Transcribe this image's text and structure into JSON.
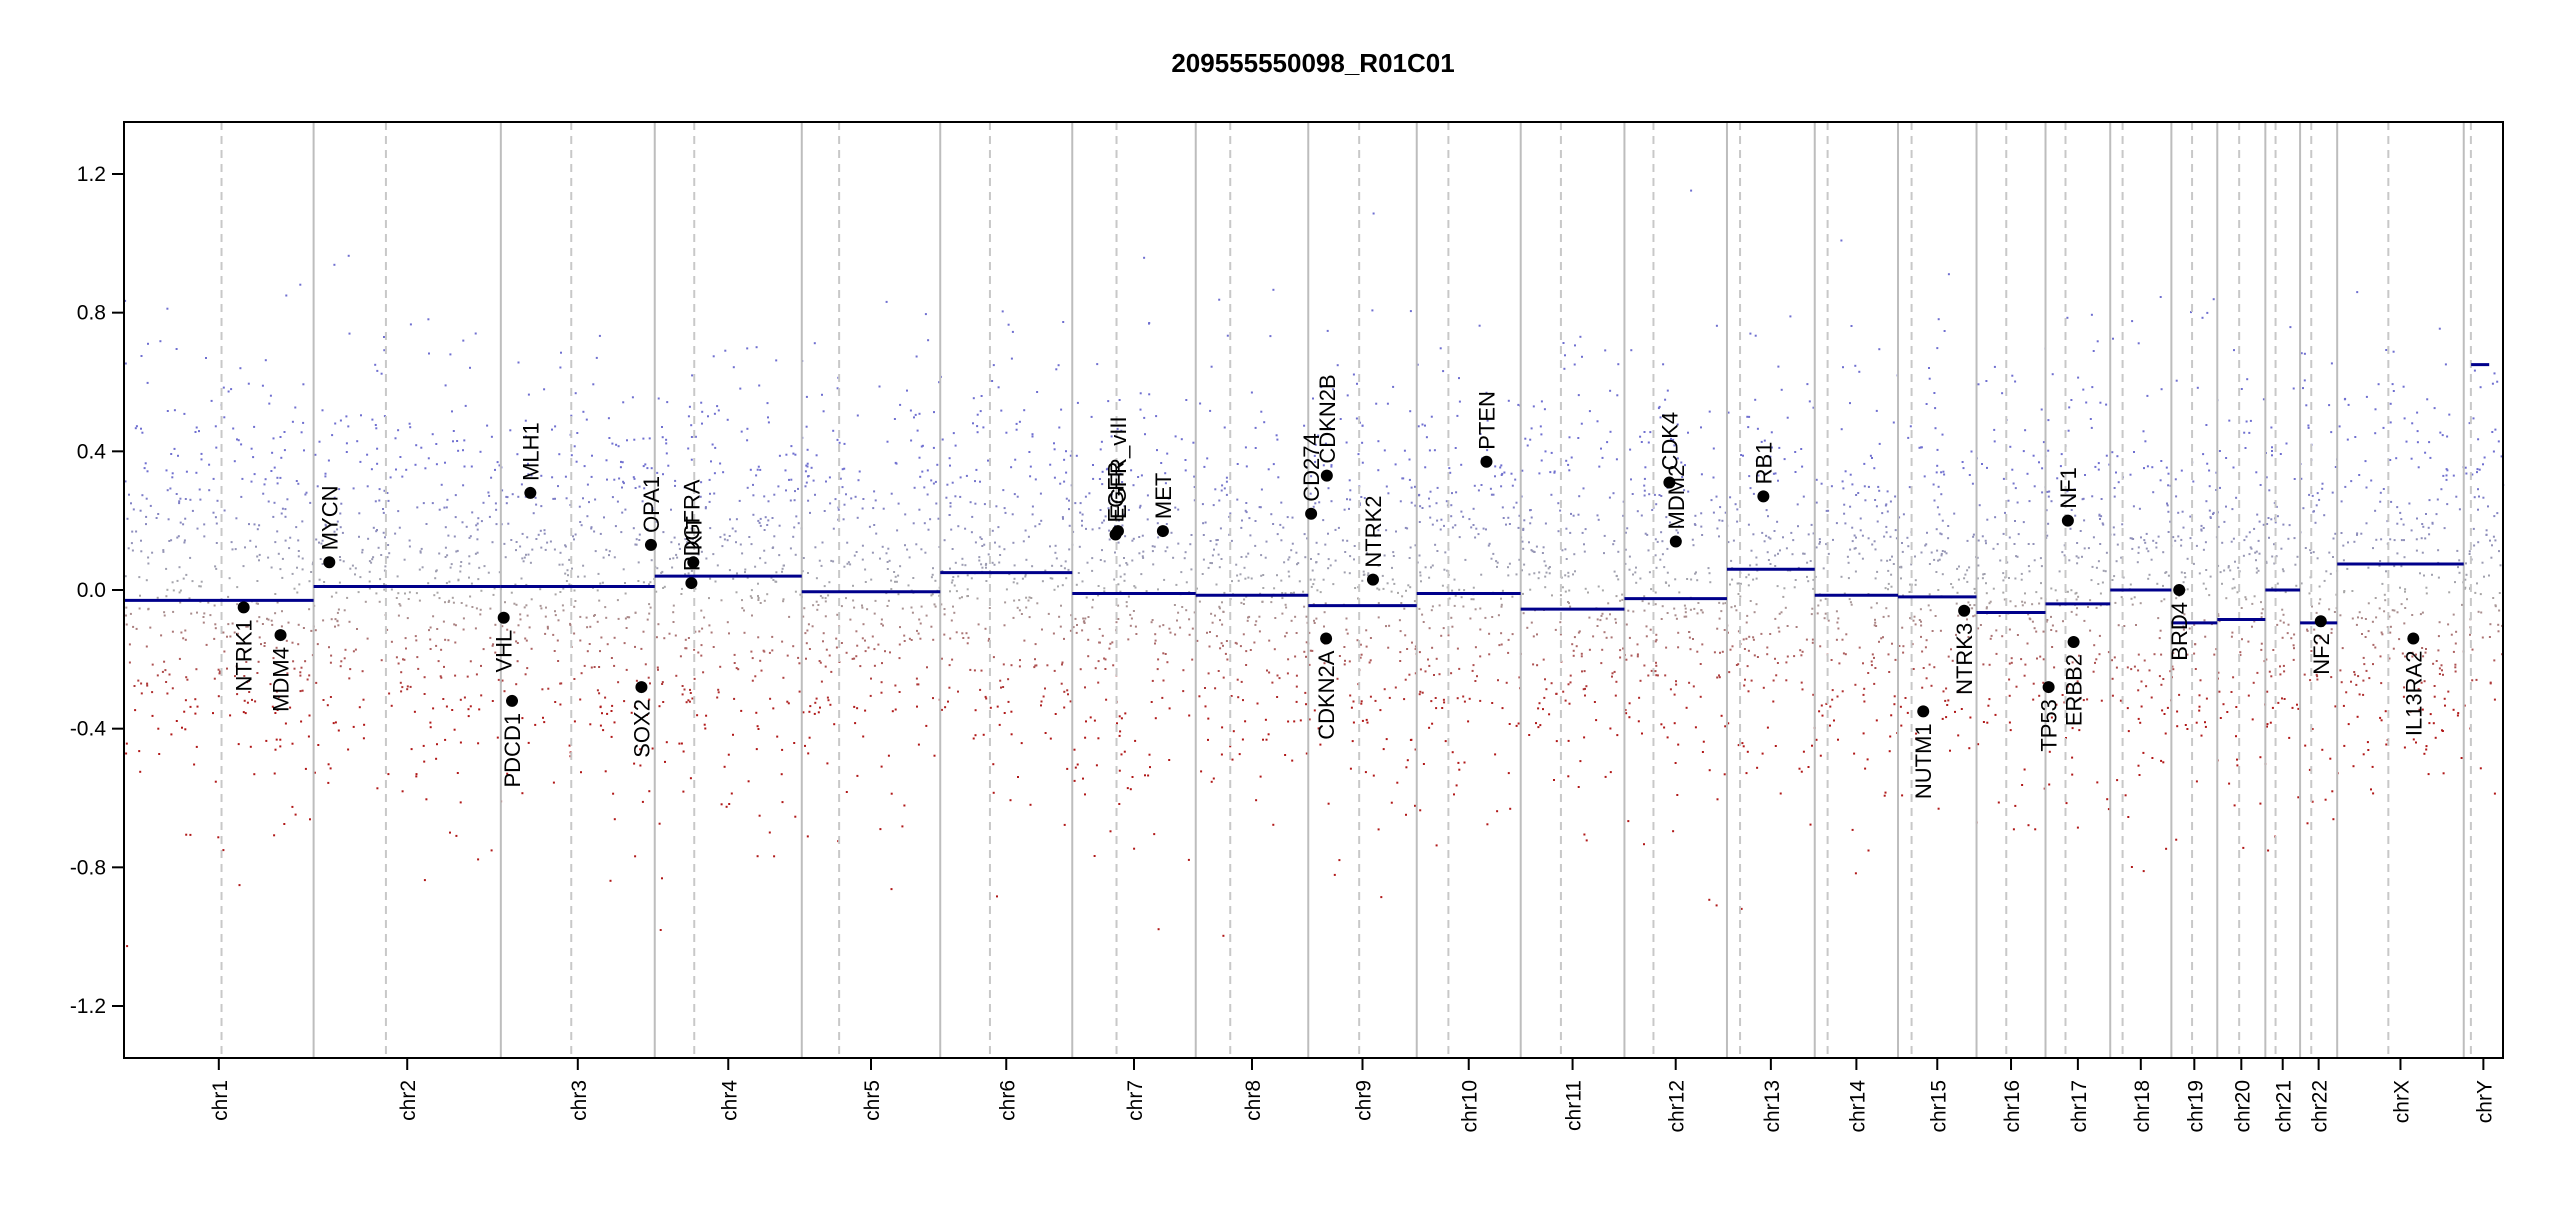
{
  "chart_data": {
    "type": "scatter",
    "title": "209555550098_R01C01",
    "xlabel": "",
    "ylabel": "",
    "ylim": [
      -1.35,
      1.35
    ],
    "y_ticks": [
      {
        "value": -1.2,
        "label": "-1.2"
      },
      {
        "value": -0.8,
        "label": "-0.8"
      },
      {
        "value": -0.4,
        "label": "-0.4"
      },
      {
        "value": 0.0,
        "label": "0.0"
      },
      {
        "value": 0.4,
        "label": "0.4"
      },
      {
        "value": 0.8,
        "label": "0.8"
      },
      {
        "value": 1.2,
        "label": "1.2"
      }
    ],
    "grid": false,
    "colors": {
      "gain_points": "#6f6fd0",
      "loss_points": "#b01818",
      "neutral_points": "#a8a8a8",
      "segment": "#00008b",
      "gene_marker": "#000000",
      "chrom_boundary": "#bdbdbd",
      "centromere": "#c8c8c8"
    },
    "chromosomes": [
      {
        "name": "chr1",
        "start": 0.0,
        "end": 0.0797,
        "centromere": 0.041,
        "segments": [
          {
            "start": 0.0,
            "end": 0.0797,
            "value": -0.03
          }
        ]
      },
      {
        "name": "chr2",
        "start": 0.0797,
        "end": 0.1584,
        "centromere": 0.1101,
        "segments": [
          {
            "start": 0.0797,
            "end": 0.1584,
            "value": 0.01
          }
        ]
      },
      {
        "name": "chr3",
        "start": 0.1584,
        "end": 0.2231,
        "centromere": 0.188,
        "segments": [
          {
            "start": 0.1584,
            "end": 0.2231,
            "value": 0.01
          }
        ]
      },
      {
        "name": "chr4",
        "start": 0.2231,
        "end": 0.2849,
        "centromere": 0.2397,
        "segments": [
          {
            "start": 0.2231,
            "end": 0.2849,
            "value": 0.04
          }
        ]
      },
      {
        "name": "chr5",
        "start": 0.2849,
        "end": 0.3431,
        "centromere": 0.3006,
        "segments": [
          {
            "start": 0.2849,
            "end": 0.3431,
            "value": -0.005
          }
        ]
      },
      {
        "name": "chr6",
        "start": 0.3431,
        "end": 0.3986,
        "centromere": 0.364,
        "segments": [
          {
            "start": 0.3431,
            "end": 0.3986,
            "value": 0.05
          }
        ]
      },
      {
        "name": "chr7",
        "start": 0.3986,
        "end": 0.4505,
        "centromere": 0.4172,
        "segments": [
          {
            "start": 0.3986,
            "end": 0.4505,
            "value": -0.01
          }
        ]
      },
      {
        "name": "chr8",
        "start": 0.4505,
        "end": 0.4978,
        "centromere": 0.465,
        "segments": [
          {
            "start": 0.4505,
            "end": 0.4978,
            "value": -0.015
          }
        ]
      },
      {
        "name": "chr9",
        "start": 0.4978,
        "end": 0.5434,
        "centromere": 0.5192,
        "segments": [
          {
            "start": 0.4978,
            "end": 0.5434,
            "value": -0.045
          }
        ]
      },
      {
        "name": "chr10",
        "start": 0.5434,
        "end": 0.5871,
        "centromere": 0.5567,
        "segments": [
          {
            "start": 0.5434,
            "end": 0.5871,
            "value": -0.01
          }
        ]
      },
      {
        "name": "chr11",
        "start": 0.5871,
        "end": 0.6307,
        "centromere": 0.604,
        "segments": [
          {
            "start": 0.5871,
            "end": 0.6307,
            "value": -0.055
          }
        ]
      },
      {
        "name": "chr12",
        "start": 0.6307,
        "end": 0.6738,
        "centromere": 0.6429,
        "segments": [
          {
            "start": 0.6307,
            "end": 0.6738,
            "value": -0.025
          }
        ]
      },
      {
        "name": "chr13",
        "start": 0.6738,
        "end": 0.7107,
        "centromere": 0.6793,
        "segments": [
          {
            "start": 0.6738,
            "end": 0.7107,
            "value": 0.06
          }
        ]
      },
      {
        "name": "chr14",
        "start": 0.7107,
        "end": 0.7457,
        "centromere": 0.7161,
        "segments": [
          {
            "start": 0.7107,
            "end": 0.7457,
            "value": -0.015
          }
        ]
      },
      {
        "name": "chr15",
        "start": 0.7457,
        "end": 0.7787,
        "centromere": 0.7514,
        "segments": [
          {
            "start": 0.7457,
            "end": 0.7787,
            "value": -0.02
          }
        ]
      },
      {
        "name": "chr16",
        "start": 0.7787,
        "end": 0.8077,
        "centromere": 0.7912,
        "segments": [
          {
            "start": 0.7787,
            "end": 0.8077,
            "value": -0.065
          }
        ]
      },
      {
        "name": "chr17",
        "start": 0.8077,
        "end": 0.8349,
        "centromere": 0.8161,
        "segments": [
          {
            "start": 0.8077,
            "end": 0.8349,
            "value": -0.04
          }
        ]
      },
      {
        "name": "chr18",
        "start": 0.8349,
        "end": 0.8606,
        "centromere": 0.8401,
        "segments": [
          {
            "start": 0.8349,
            "end": 0.8606,
            "value": 0.0
          }
        ]
      },
      {
        "name": "chr19",
        "start": 0.8606,
        "end": 0.8799,
        "centromere": 0.8693,
        "segments": [
          {
            "start": 0.8606,
            "end": 0.8799,
            "value": -0.095
          }
        ]
      },
      {
        "name": "chr20",
        "start": 0.8799,
        "end": 0.9001,
        "centromere": 0.8891,
        "segments": [
          {
            "start": 0.8799,
            "end": 0.9001,
            "value": -0.085
          }
        ]
      },
      {
        "name": "chr21",
        "start": 0.9001,
        "end": 0.9147,
        "centromere": 0.9044,
        "segments": [
          {
            "start": 0.9001,
            "end": 0.9147,
            "value": 0.0
          }
        ]
      },
      {
        "name": "chr22",
        "start": 0.9147,
        "end": 0.9303,
        "centromere": 0.9194,
        "segments": [
          {
            "start": 0.9147,
            "end": 0.9303,
            "value": -0.095
          }
        ]
      },
      {
        "name": "chrX",
        "start": 0.9303,
        "end": 0.9835,
        "centromere": 0.9518,
        "segments": [
          {
            "start": 0.9303,
            "end": 0.9835,
            "value": 0.075
          }
        ]
      },
      {
        "name": "chrY",
        "start": 0.9835,
        "end": 1.0,
        "centromere": 0.9865,
        "segments": [
          {
            "start": 0.9866,
            "end": 0.9942,
            "value": 0.65
          }
        ]
      }
    ],
    "genes": [
      {
        "name": "NTRK1",
        "x": 0.0503,
        "value": -0.05,
        "label_side": "below"
      },
      {
        "name": "MDM4",
        "x": 0.0658,
        "value": -0.13,
        "label_side": "below"
      },
      {
        "name": "MYCN",
        "x": 0.0863,
        "value": 0.08,
        "label_side": "above"
      },
      {
        "name": "VHL",
        "x": 0.1596,
        "value": -0.08,
        "label_side": "below"
      },
      {
        "name": "PDCD1",
        "x": 0.1631,
        "value": -0.32,
        "label_side": "below"
      },
      {
        "name": "MLH1",
        "x": 0.1708,
        "value": 0.28,
        "label_side": "above"
      },
      {
        "name": "SOX2",
        "x": 0.2175,
        "value": -0.28,
        "label_side": "below"
      },
      {
        "name": "OPA1",
        "x": 0.2215,
        "value": 0.13,
        "label_side": "above"
      },
      {
        "name": "PDGFRA",
        "x": 0.2385,
        "value": 0.02,
        "label_side": "above"
      },
      {
        "name": "KIT",
        "x": 0.2393,
        "value": 0.08,
        "label_side": "above"
      },
      {
        "name": "EGFR",
        "x": 0.4168,
        "value": 0.16,
        "label_side": "above"
      },
      {
        "name": "EGFR_vIII",
        "x": 0.4178,
        "value": 0.17,
        "label_side": "above"
      },
      {
        "name": "MET",
        "x": 0.4367,
        "value": 0.17,
        "label_side": "above"
      },
      {
        "name": "CD274",
        "x": 0.499,
        "value": 0.22,
        "label_side": "above"
      },
      {
        "name": "CDKN2A",
        "x": 0.5053,
        "value": -0.14,
        "label_side": "below"
      },
      {
        "name": "CDKN2B",
        "x": 0.5056,
        "value": 0.33,
        "label_side": "above"
      },
      {
        "name": "NTRK2",
        "x": 0.525,
        "value": 0.03,
        "label_side": "above"
      },
      {
        "name": "PTEN",
        "x": 0.5727,
        "value": 0.37,
        "label_side": "above"
      },
      {
        "name": "CDK4",
        "x": 0.6496,
        "value": 0.31,
        "label_side": "above"
      },
      {
        "name": "MDM2",
        "x": 0.6523,
        "value": 0.14,
        "label_side": "above"
      },
      {
        "name": "RB1",
        "x": 0.6891,
        "value": 0.27,
        "label_side": "above"
      },
      {
        "name": "NUTM1",
        "x": 0.7563,
        "value": -0.35,
        "label_side": "below"
      },
      {
        "name": "NTRK3",
        "x": 0.7735,
        "value": -0.06,
        "label_side": "below"
      },
      {
        "name": "TP53",
        "x": 0.809,
        "value": -0.28,
        "label_side": "below"
      },
      {
        "name": "NF1",
        "x": 0.8171,
        "value": 0.2,
        "label_side": "above"
      },
      {
        "name": "ERBB2",
        "x": 0.8195,
        "value": -0.15,
        "label_side": "below"
      },
      {
        "name": "BRD4",
        "x": 0.8639,
        "value": 0.0,
        "label_side": "below"
      },
      {
        "name": "NF2",
        "x": 0.9234,
        "value": -0.09,
        "label_side": "below"
      },
      {
        "name": "IL13RA2",
        "x": 0.9623,
        "value": -0.14,
        "label_side": "below"
      }
    ]
  }
}
